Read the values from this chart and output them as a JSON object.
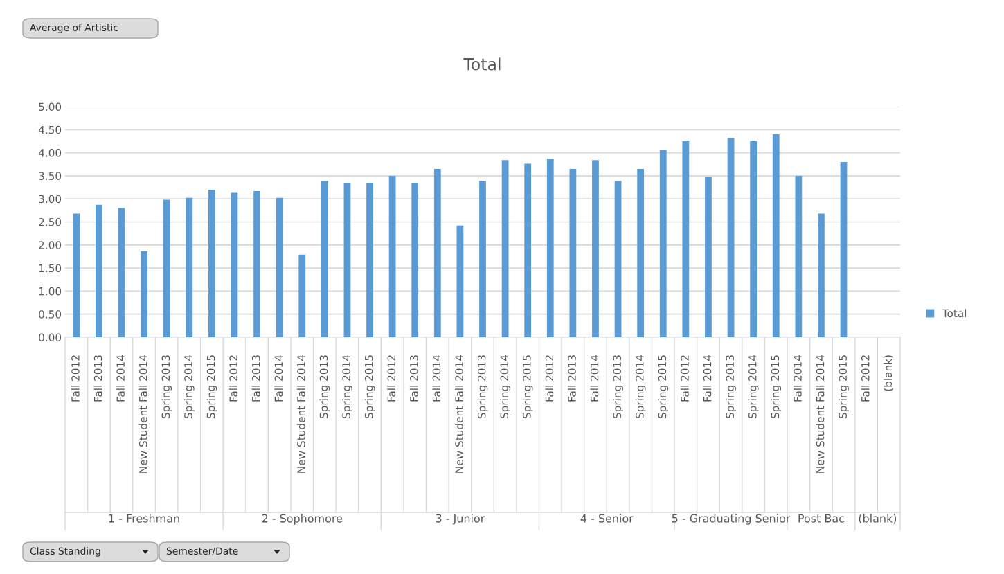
{
  "chart_data": {
    "type": "bar",
    "title": "Total",
    "categories": [
      "Fall 2012",
      "Fall 2013",
      "Fall 2014",
      "New Student Fall 2014",
      "Spring 2013",
      "Spring 2014",
      "Spring 2015",
      "Fall 2012",
      "Fall 2013",
      "Fall 2014",
      "New Student Fall 2014",
      "Spring 2013",
      "Spring 2014",
      "Spring 2015",
      "Fall 2012",
      "Fall 2013",
      "Fall 2014",
      "New Student Fall 2014",
      "Spring 2013",
      "Spring 2014",
      "Spring 2015",
      "Fall 2012",
      "Fall 2013",
      "Fall 2014",
      "Spring 2013",
      "Spring 2014",
      "Spring 2015",
      "Fall 2012",
      "Fall 2014",
      "Spring 2013",
      "Spring 2014",
      "Spring 2015",
      "Fall 2014",
      "New Student Fall 2014",
      "Spring 2015",
      "Fall 2012",
      "(blank)"
    ],
    "series": [
      {
        "name": "Total",
        "color": "#5b9bd5",
        "values": [
          2.68,
          2.87,
          2.8,
          1.86,
          2.98,
          3.02,
          3.2,
          3.13,
          3.17,
          3.02,
          1.79,
          3.39,
          3.35,
          3.35,
          3.5,
          3.35,
          3.65,
          2.42,
          3.39,
          3.84,
          3.76,
          3.87,
          3.65,
          3.84,
          3.39,
          3.65,
          4.06,
          4.25,
          3.47,
          4.32,
          4.25,
          4.4,
          3.5,
          2.68,
          3.8,
          null,
          null
        ]
      }
    ],
    "ylim": [
      0,
      5
    ],
    "yticks": [
      {
        "value": 0,
        "label": "0.00"
      },
      {
        "value": 0.5,
        "label": "0.50"
      },
      {
        "value": 1,
        "label": "1.00"
      },
      {
        "value": 1.5,
        "label": "1.50"
      },
      {
        "value": 2,
        "label": "2.00"
      },
      {
        "value": 2.5,
        "label": "2.50"
      },
      {
        "value": 3,
        "label": "3.00"
      },
      {
        "value": 3.5,
        "label": "3.50"
      },
      {
        "value": 4,
        "label": "4.00"
      },
      {
        "value": 4.5,
        "label": "4.50"
      },
      {
        "value": 5,
        "label": "5.00"
      }
    ],
    "grid": "y",
    "legend": "right",
    "annotations": [
      "Average of Artistic",
      "Class Standing",
      "Semester/Date",
      "1 - Freshman",
      "2 - Sophomore",
      "3 - Junior",
      "4 - Senior",
      "5 - Graduating Senior",
      "Post Bac",
      "(blank)"
    ]
  }
}
